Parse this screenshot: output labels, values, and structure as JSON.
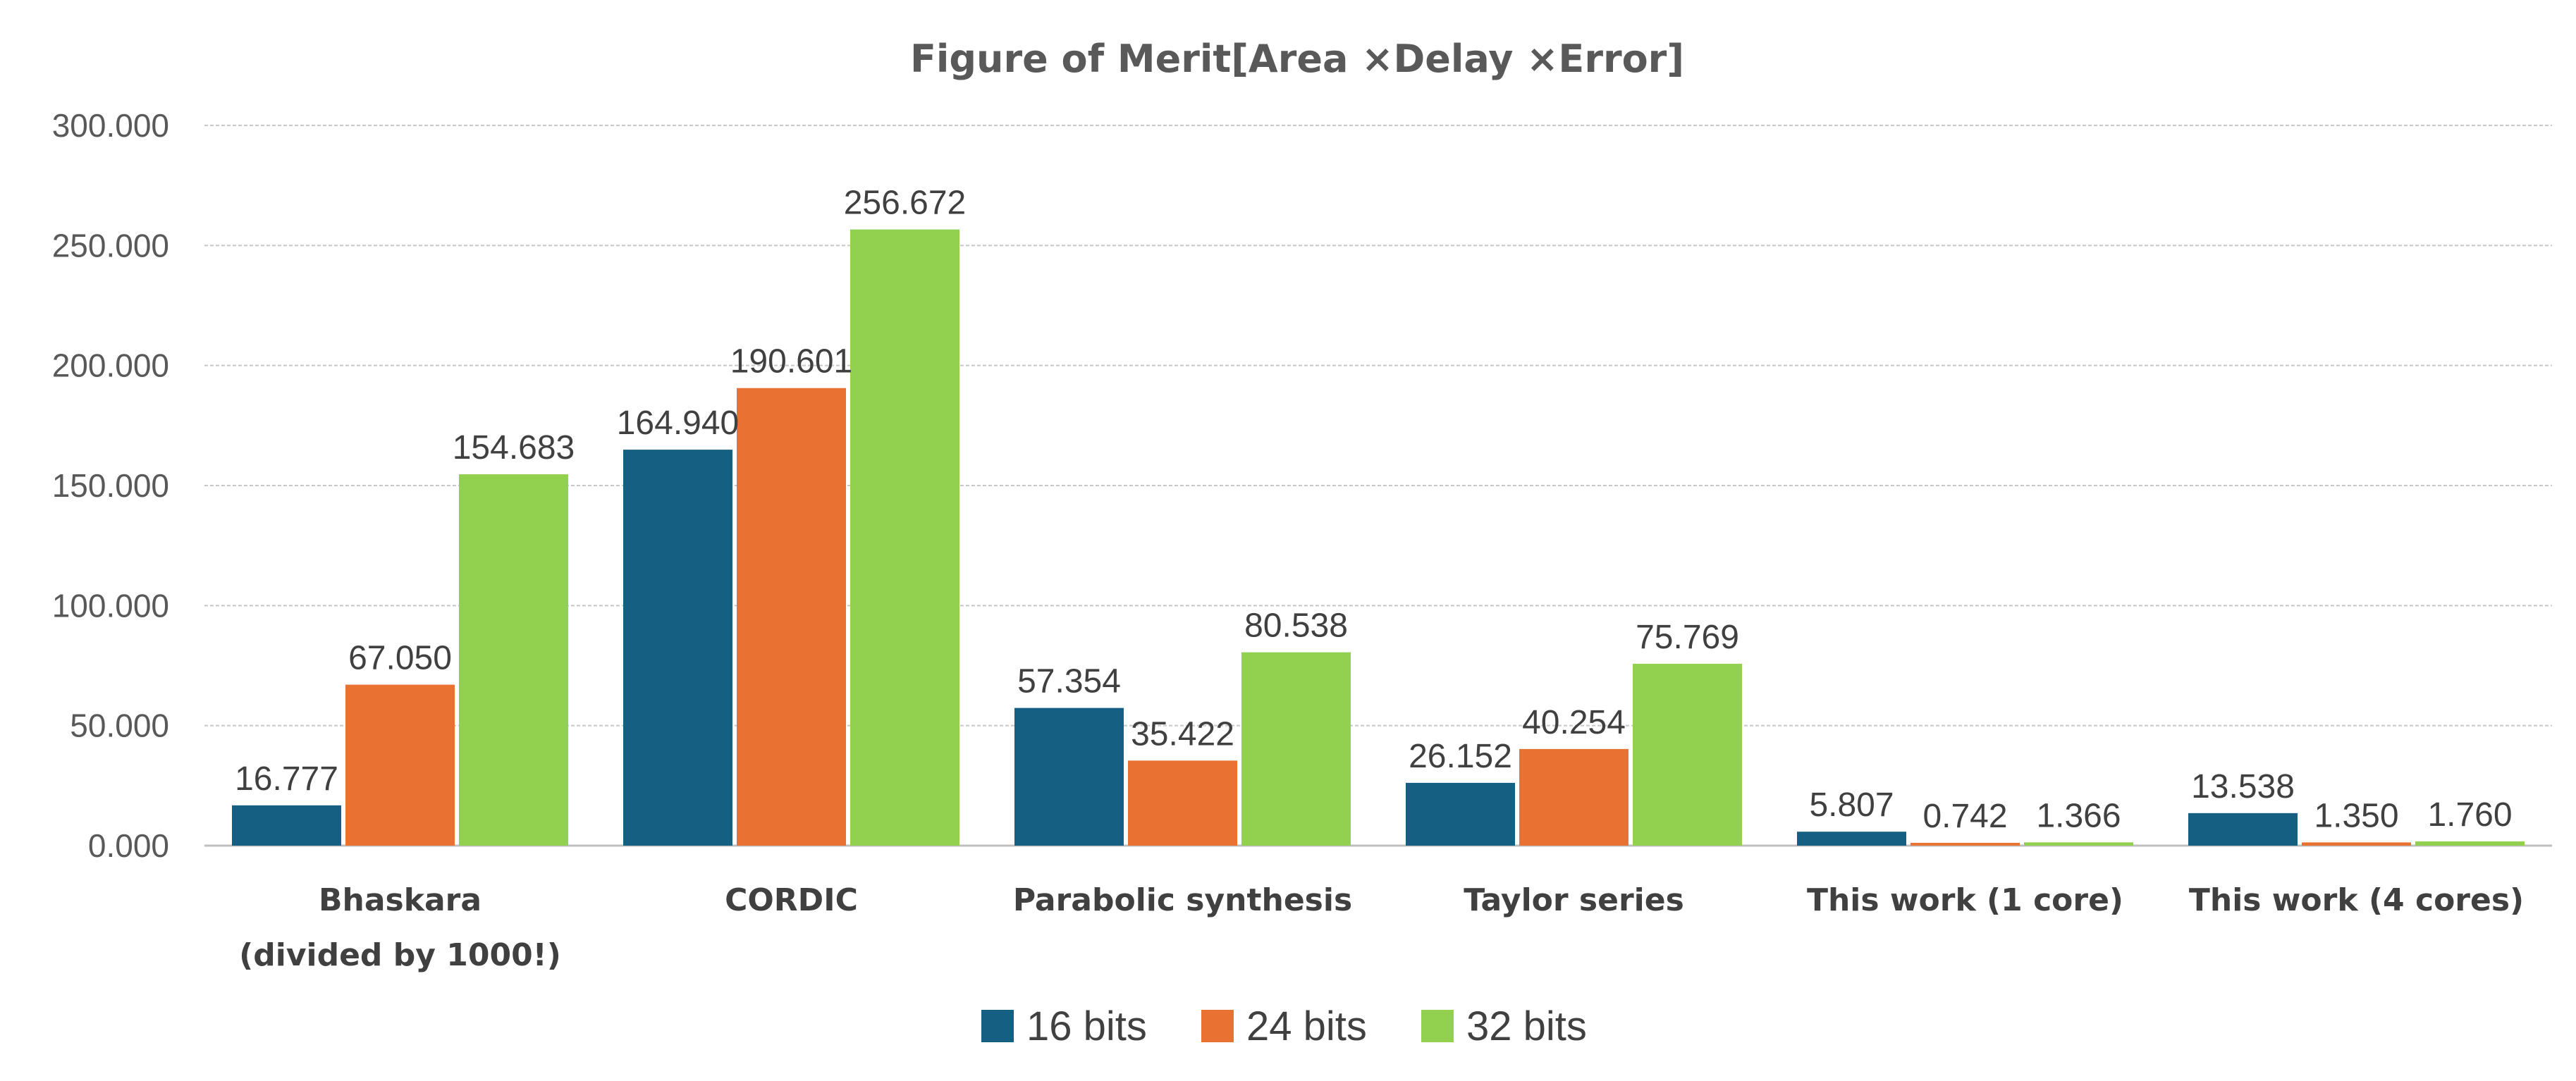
{
  "chart_data": {
    "type": "bar",
    "title": "Figure of Merit[Area ×Delay ×Error]",
    "xlabel": "",
    "ylabel": "",
    "ylim": [
      0,
      300
    ],
    "yticks": [
      0,
      50,
      100,
      150,
      200,
      250,
      300
    ],
    "ytick_labels": [
      "0.000",
      "50.000",
      "100.000",
      "150.000",
      "200.000",
      "250.000",
      "300.000"
    ],
    "grid": true,
    "legend_position": "bottom",
    "categories": [
      [
        "Bhaskara",
        "(divided by 1000!)"
      ],
      [
        "CORDIC"
      ],
      [
        "Parabolic synthesis"
      ],
      [
        "Taylor series"
      ],
      [
        "This work (1 core)"
      ],
      [
        "This work (4 cores)"
      ]
    ],
    "series": [
      {
        "name": "16 bits",
        "color": "#156082",
        "values": [
          16.777,
          164.94,
          57.354,
          26.152,
          5.807,
          13.538
        ],
        "labels": [
          "16.777",
          "164.940",
          "57.354",
          "26.152",
          "5.807",
          "13.538"
        ]
      },
      {
        "name": "24 bits",
        "color": "#E97132",
        "values": [
          67.05,
          190.601,
          35.422,
          40.254,
          0.742,
          1.35
        ],
        "labels": [
          "67.050",
          "190.601",
          "35.422",
          "40.254",
          "0.742",
          "1.350"
        ]
      },
      {
        "name": "32 bits",
        "color": "#92D050",
        "values": [
          154.683,
          256.672,
          80.538,
          75.769,
          1.366,
          1.76
        ],
        "labels": [
          "154.683",
          "256.672",
          "80.538",
          "75.769",
          "1.366",
          "1.760"
        ]
      }
    ]
  }
}
